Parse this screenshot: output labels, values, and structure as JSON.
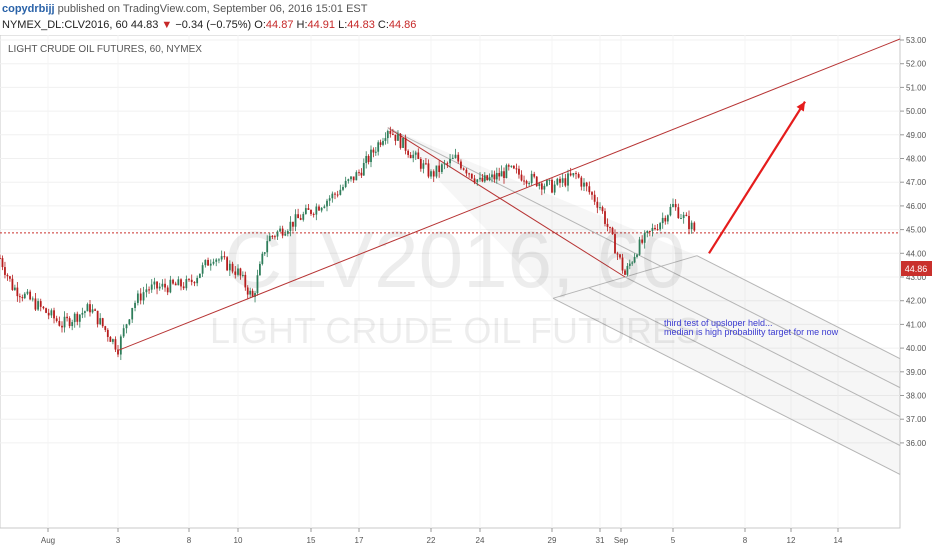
{
  "header": {
    "author": "copydrbijj",
    "published_text": "published on TradingView.com, September 06, 2016 15:01 EST",
    "symbol": "NYMEX_DL:CLV2016, 60",
    "last": "44.83",
    "change_arrow": "▼",
    "change": "−0.34 (−0.75%)",
    "o_label": "O:",
    "o": "44.87",
    "h_label": "H:",
    "h": "44.91",
    "l_label": "L:",
    "l": "44.83",
    "c_label": "C:",
    "c": "44.86"
  },
  "chart_title": "LIGHT CRUDE OIL FUTURES, 60, NYMEX",
  "watermark": {
    "line1": "CLV2016, 60",
    "line2": "LIGHT CRUDE OIL FUTURES"
  },
  "annotation": {
    "line1": "third test of upsloper held...",
    "line2": "median is high probability target for me now"
  },
  "price_label": "44.86",
  "colors": {
    "up": "#2e7d5a",
    "down": "#b71c1c",
    "trend": "#b73434",
    "arrow": "#e51c1c",
    "note": "#3a3ad0"
  },
  "chart_data": {
    "type": "candlestick",
    "title": "LIGHT CRUDE OIL FUTURES, 60, NYMEX",
    "ylim": [
      35.7,
      53.2
    ],
    "y_ticks": [
      "36.00",
      "37.00",
      "38.00",
      "39.00",
      "40.00",
      "41.00",
      "42.00",
      "43.00",
      "44.00",
      "45.00",
      "46.00",
      "47.00",
      "48.00",
      "49.00",
      "50.00",
      "51.00",
      "52.00",
      "53.00"
    ],
    "x_ticks": [
      "Aug",
      "3",
      "8",
      "10",
      "15",
      "17",
      "22",
      "24",
      "29",
      "31",
      "Sep",
      "5",
      "8",
      "12",
      "14"
    ],
    "current_price": 44.86,
    "trend_line": {
      "from": [
        "Aug 3",
        39.9
      ],
      "to": [
        "Sep 14",
        52.0
      ]
    },
    "pitchfork_pivots": [
      [
        "Aug 19",
        49.3
      ],
      [
        "Sep 1",
        43.0
      ],
      [
        "Sep 6",
        43.9
      ]
    ],
    "projection_arrow": {
      "from": [
        "Sep 6",
        44.0
      ],
      "to": [
        "Sep 12",
        50.4
      ]
    },
    "price_path": [
      [
        "Jul 27",
        43.8
      ],
      [
        "Jul 28",
        42.6
      ],
      [
        "Jul 29",
        42.2
      ],
      [
        "Aug 1",
        41.0
      ],
      [
        "Aug 2",
        41.7
      ],
      [
        "Aug 3",
        40.0
      ],
      [
        "Aug 4",
        41.8
      ],
      [
        "Aug 5",
        42.5
      ],
      [
        "Aug 8",
        42.7
      ],
      [
        "Aug 9",
        43.9
      ],
      [
        "Aug 10",
        43.2
      ],
      [
        "Aug 11",
        42.1
      ],
      [
        "Aug 12",
        44.6
      ],
      [
        "Aug 15",
        45.8
      ],
      [
        "Aug 16",
        46.5
      ],
      [
        "Aug 17",
        47.4
      ],
      [
        "Aug 18",
        48.3
      ],
      [
        "Aug 19",
        49.3
      ],
      [
        "Aug 22",
        47.3
      ],
      [
        "Aug 23",
        48.0
      ],
      [
        "Aug 24",
        47.0
      ],
      [
        "Aug 25",
        47.2
      ],
      [
        "Aug 26",
        47.5
      ],
      [
        "Aug 29",
        46.8
      ],
      [
        "Aug 30",
        47.3
      ],
      [
        "Aug 31",
        46.0
      ],
      [
        "Sep 1",
        43.1
      ],
      [
        "Sep 2",
        44.2
      ],
      [
        "Sep 5",
        46.0
      ],
      [
        "Sep 6",
        44.86
      ]
    ]
  }
}
